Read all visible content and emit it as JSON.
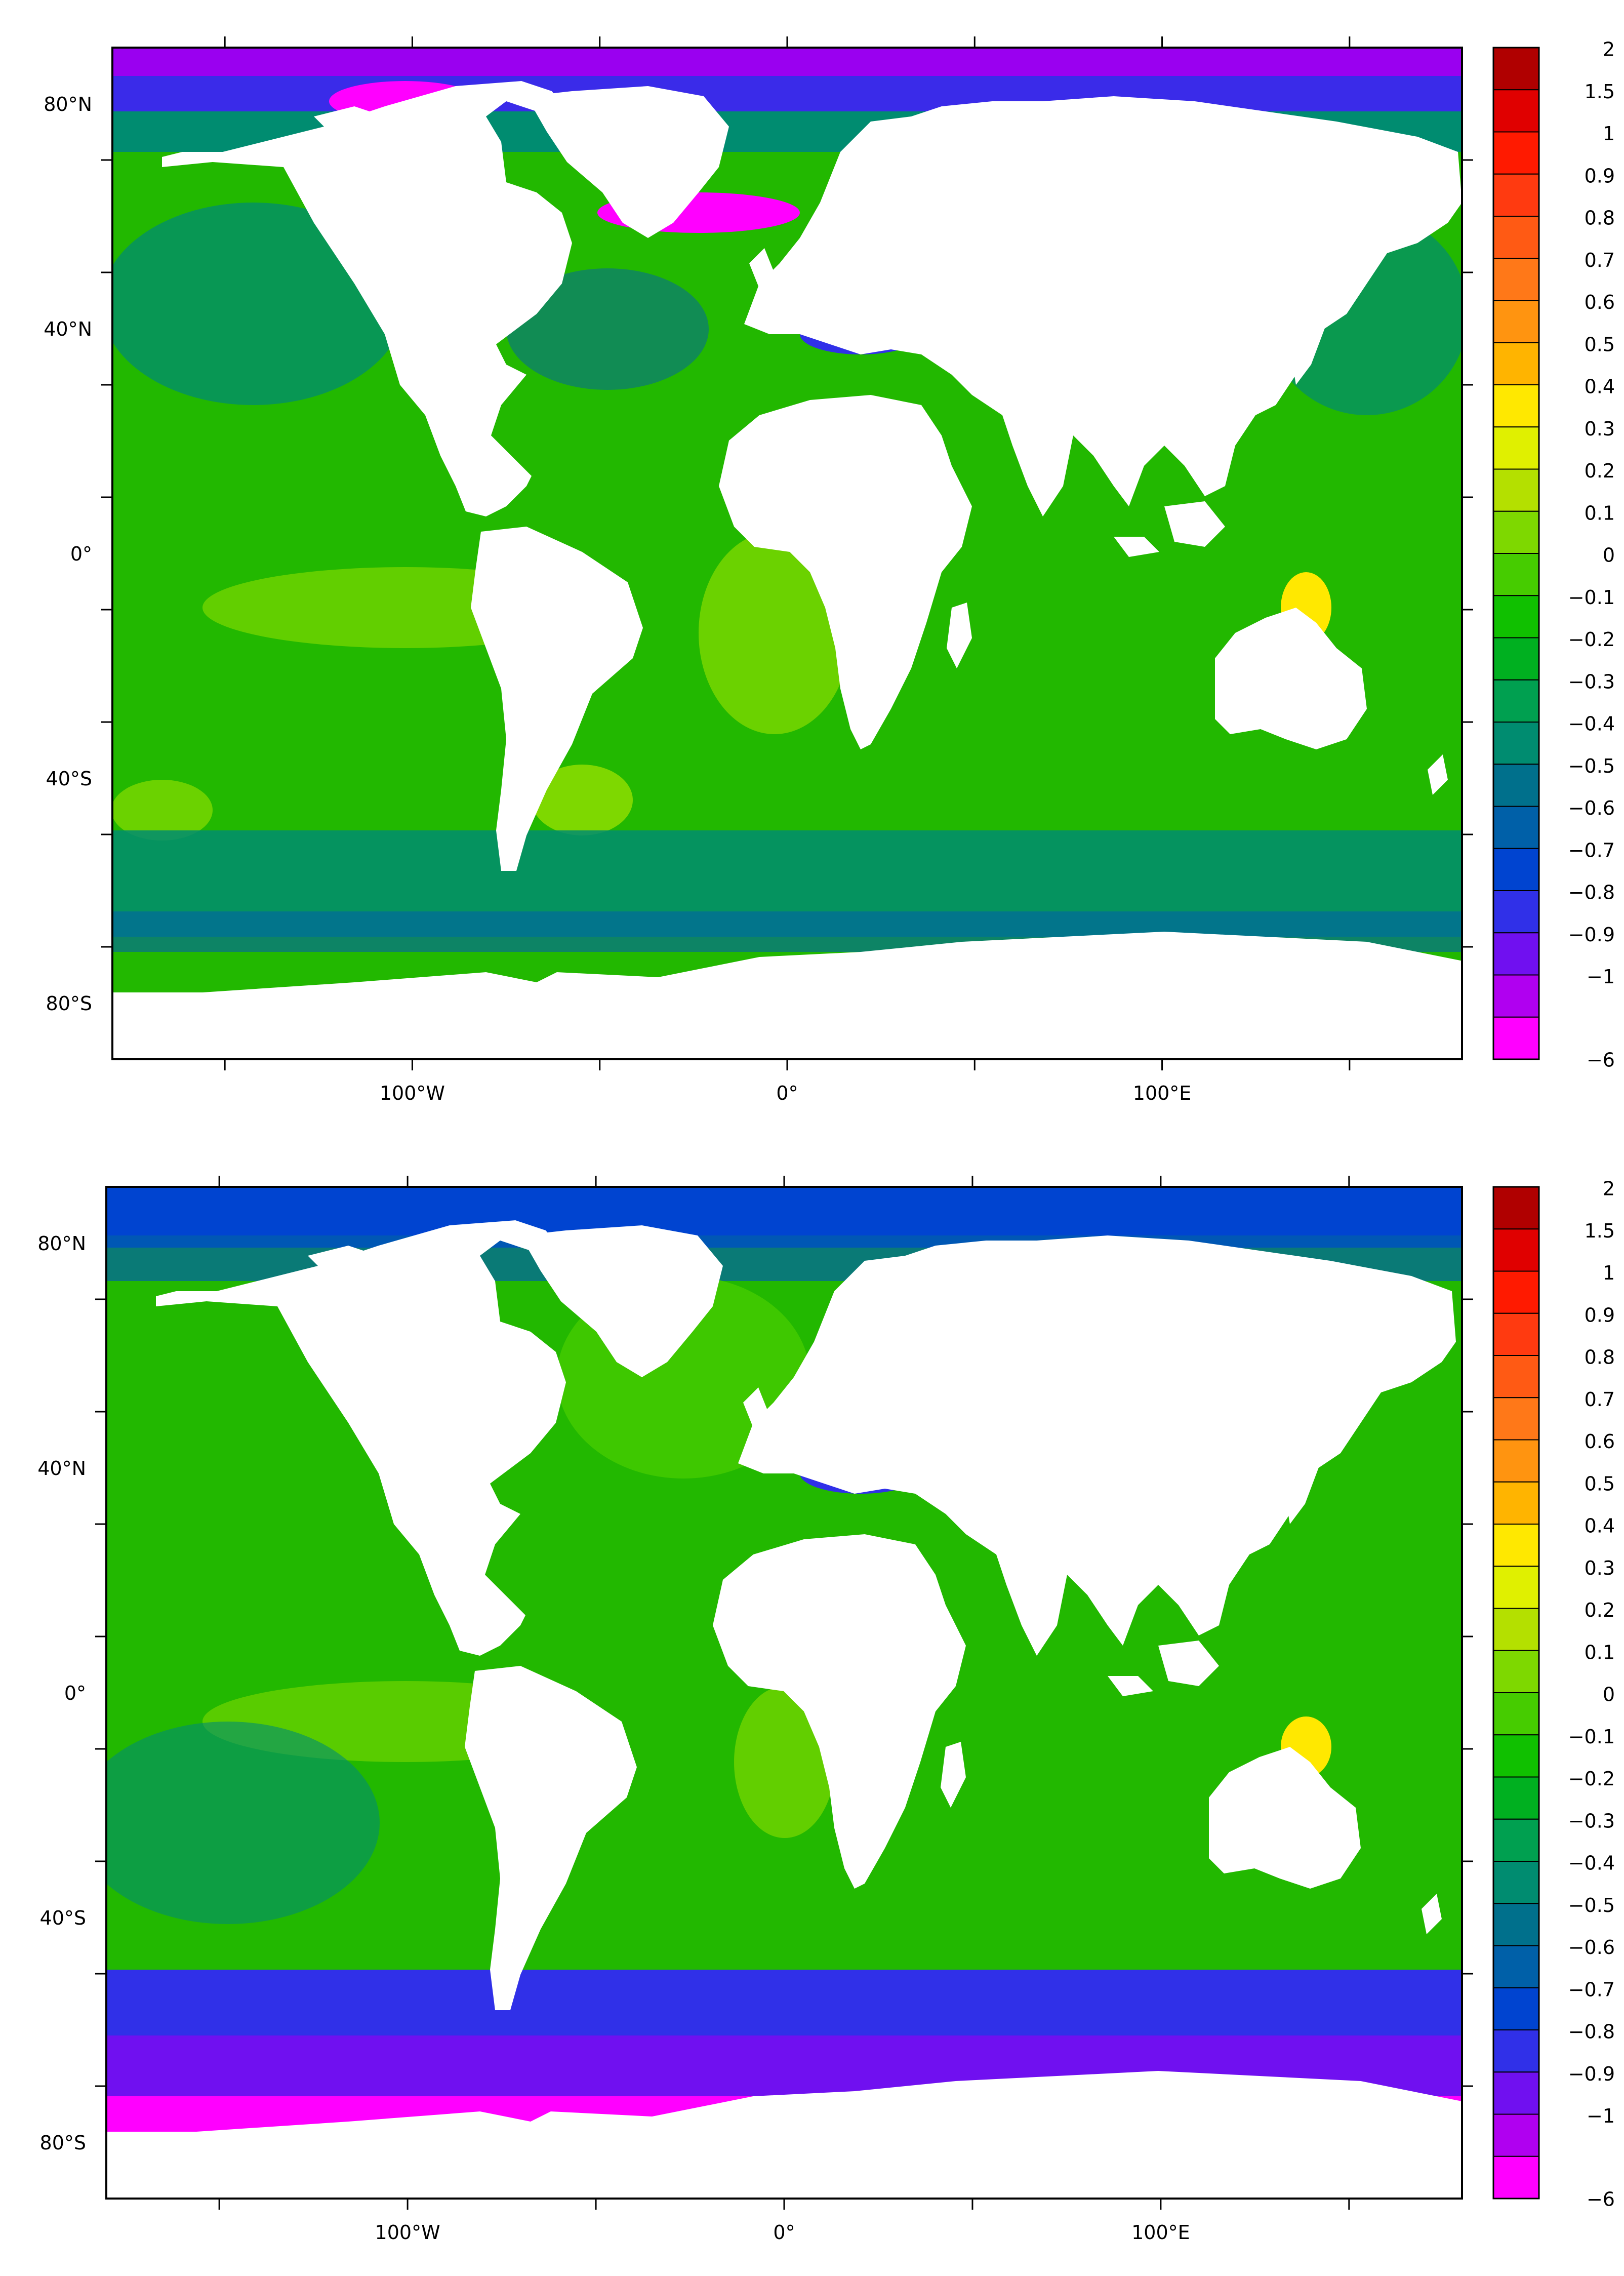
{
  "panels": [
    {
      "id": "top",
      "lat_labels": [
        "80°N",
        "40°N",
        "0°",
        "40°S",
        "80°S"
      ],
      "lon_labels": [
        "100°W",
        "0°",
        "100°E"
      ]
    },
    {
      "id": "bottom",
      "lat_labels": [
        "80°N",
        "40°N",
        "0°",
        "40°S",
        "80°S"
      ],
      "lon_labels": [
        "100°W",
        "0°",
        "100°E"
      ]
    }
  ],
  "colorbar": {
    "labels": [
      "2",
      "1.5",
      "1",
      "0.9",
      "0.8",
      "0.7",
      "0.6",
      "0.5",
      "0.4",
      "0.3",
      "0.2",
      "0.1",
      "0",
      "−0.1",
      "−0.2",
      "−0.3",
      "−0.4",
      "−0.5",
      "−0.6",
      "−0.7",
      "−0.8",
      "−0.9",
      "−1",
      "−6"
    ],
    "colors": [
      "#b00000",
      "#e00000",
      "#ff1a00",
      "#ff3a10",
      "#ff5a14",
      "#ff7818",
      "#ff9410",
      "#ffb400",
      "#ffe800",
      "#e0f000",
      "#b4e000",
      "#7ed800",
      "#46cc00",
      "#10c000",
      "#00b020",
      "#00a050",
      "#008c70",
      "#00708c",
      "#0060a8",
      "#0044d0",
      "#3030e8",
      "#7010f0",
      "#b000f0",
      "#ff00ff"
    ]
  },
  "colors": {
    "ocean_green": "#22b800",
    "land": "#ffffff",
    "frame": "#000000"
  }
}
